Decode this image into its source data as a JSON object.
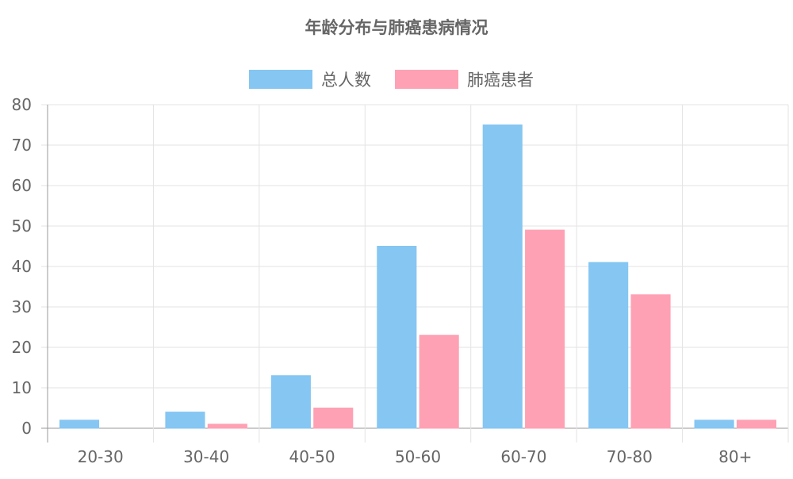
{
  "chart_data": {
    "type": "bar",
    "title": "年龄分布与肺癌患病情况",
    "categories": [
      "20-30",
      "30-40",
      "40-50",
      "50-60",
      "60-70",
      "70-80",
      "80+"
    ],
    "series": [
      {
        "name": "总人数",
        "values": [
          2,
          4,
          13,
          45,
          75,
          41,
          2
        ],
        "color": "#85c6f2"
      },
      {
        "name": "肺癌患者",
        "values": [
          0,
          1,
          5,
          23,
          49,
          33,
          2
        ],
        "color": "#ffa1b4"
      }
    ],
    "ylim": [
      0,
      80
    ],
    "yticks": [
      0,
      10,
      20,
      30,
      40,
      50,
      60,
      70,
      80
    ],
    "grid": true,
    "legend_position": "top-center",
    "xlabel": "",
    "ylabel": ""
  }
}
